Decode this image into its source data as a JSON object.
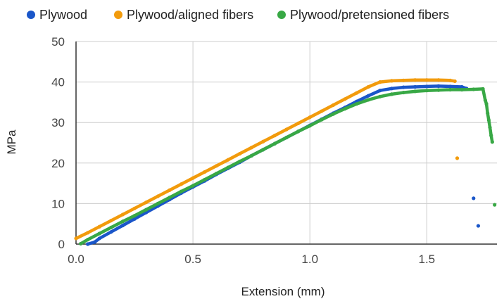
{
  "chart_data": {
    "type": "scatter",
    "title": "",
    "xlabel": "Extension (mm)",
    "ylabel": "MPa",
    "xlim": [
      0,
      1.8
    ],
    "ylim": [
      0,
      50
    ],
    "x_ticks": [
      "0.0",
      "0.5",
      "1.0",
      "1.5"
    ],
    "y_ticks": [
      "0",
      "10",
      "20",
      "30",
      "40",
      "50"
    ],
    "grid": true,
    "legend_position": "top",
    "series": [
      {
        "name": "Plywood",
        "color": "#1a56c9",
        "points": [
          [
            0.05,
            0.0
          ],
          [
            0.08,
            0.5
          ],
          [
            0.1,
            1.4
          ],
          [
            0.15,
            3.0
          ],
          [
            0.2,
            4.6
          ],
          [
            0.25,
            6.2
          ],
          [
            0.3,
            7.8
          ],
          [
            0.35,
            9.4
          ],
          [
            0.4,
            11.0
          ],
          [
            0.45,
            12.6
          ],
          [
            0.5,
            14.1
          ],
          [
            0.55,
            15.6
          ],
          [
            0.6,
            17.2
          ],
          [
            0.65,
            18.7
          ],
          [
            0.7,
            20.2
          ],
          [
            0.75,
            21.8
          ],
          [
            0.8,
            23.3
          ],
          [
            0.85,
            24.8
          ],
          [
            0.9,
            26.3
          ],
          [
            0.95,
            27.8
          ],
          [
            1.0,
            29.3
          ],
          [
            1.05,
            30.8
          ],
          [
            1.1,
            32.3
          ],
          [
            1.15,
            33.7
          ],
          [
            1.2,
            35.2
          ],
          [
            1.25,
            36.6
          ],
          [
            1.3,
            37.9
          ],
          [
            1.35,
            38.4
          ],
          [
            1.4,
            38.7
          ],
          [
            1.45,
            38.8
          ],
          [
            1.5,
            38.9
          ],
          [
            1.55,
            39.0
          ],
          [
            1.6,
            38.9
          ],
          [
            1.65,
            38.8
          ],
          [
            1.67,
            38.4
          ],
          [
            1.7,
            11.3
          ],
          [
            1.72,
            4.5
          ]
        ]
      },
      {
        "name": "Plywood/aligned fibers",
        "color": "#f29b0c",
        "points": [
          [
            0.0,
            1.4
          ],
          [
            0.05,
            2.8
          ],
          [
            0.1,
            4.3
          ],
          [
            0.15,
            5.8
          ],
          [
            0.2,
            7.3
          ],
          [
            0.25,
            8.8
          ],
          [
            0.3,
            10.3
          ],
          [
            0.35,
            11.8
          ],
          [
            0.4,
            13.3
          ],
          [
            0.45,
            14.8
          ],
          [
            0.5,
            16.3
          ],
          [
            0.55,
            17.8
          ],
          [
            0.6,
            19.3
          ],
          [
            0.65,
            20.8
          ],
          [
            0.7,
            22.3
          ],
          [
            0.75,
            23.8
          ],
          [
            0.8,
            25.3
          ],
          [
            0.85,
            26.8
          ],
          [
            0.9,
            28.3
          ],
          [
            0.95,
            29.8
          ],
          [
            1.0,
            31.3
          ],
          [
            1.05,
            32.8
          ],
          [
            1.1,
            34.3
          ],
          [
            1.15,
            35.8
          ],
          [
            1.2,
            37.3
          ],
          [
            1.25,
            38.8
          ],
          [
            1.3,
            40.0
          ],
          [
            1.35,
            40.3
          ],
          [
            1.4,
            40.4
          ],
          [
            1.45,
            40.5
          ],
          [
            1.5,
            40.5
          ],
          [
            1.55,
            40.5
          ],
          [
            1.6,
            40.4
          ],
          [
            1.62,
            40.2
          ],
          [
            1.63,
            21.2
          ]
        ]
      },
      {
        "name": "Plywood/pretensioned fibers",
        "color": "#38a845",
        "points": [
          [
            0.02,
            0.1
          ],
          [
            0.05,
            1.1
          ],
          [
            0.1,
            2.6
          ],
          [
            0.15,
            4.1
          ],
          [
            0.2,
            5.6
          ],
          [
            0.25,
            7.0
          ],
          [
            0.3,
            8.5
          ],
          [
            0.35,
            10.0
          ],
          [
            0.4,
            11.5
          ],
          [
            0.45,
            13.0
          ],
          [
            0.5,
            14.4
          ],
          [
            0.55,
            15.9
          ],
          [
            0.6,
            17.4
          ],
          [
            0.65,
            18.9
          ],
          [
            0.7,
            20.4
          ],
          [
            0.75,
            21.8
          ],
          [
            0.8,
            23.3
          ],
          [
            0.85,
            24.8
          ],
          [
            0.9,
            26.3
          ],
          [
            0.95,
            27.8
          ],
          [
            1.0,
            29.2
          ],
          [
            1.05,
            30.7
          ],
          [
            1.1,
            32.1
          ],
          [
            1.15,
            33.4
          ],
          [
            1.2,
            34.6
          ],
          [
            1.25,
            35.6
          ],
          [
            1.3,
            36.4
          ],
          [
            1.35,
            37.0
          ],
          [
            1.4,
            37.4
          ],
          [
            1.45,
            37.7
          ],
          [
            1.5,
            37.9
          ],
          [
            1.55,
            38.0
          ],
          [
            1.6,
            38.1
          ],
          [
            1.65,
            38.1
          ],
          [
            1.7,
            38.2
          ],
          [
            1.74,
            38.3
          ],
          [
            1.75,
            35.5
          ],
          [
            1.755,
            34.6
          ],
          [
            1.76,
            32.3
          ],
          [
            1.765,
            30.6
          ],
          [
            1.77,
            28.8
          ],
          [
            1.775,
            26.8
          ],
          [
            1.78,
            25.2
          ],
          [
            1.79,
            9.7
          ]
        ]
      }
    ]
  }
}
